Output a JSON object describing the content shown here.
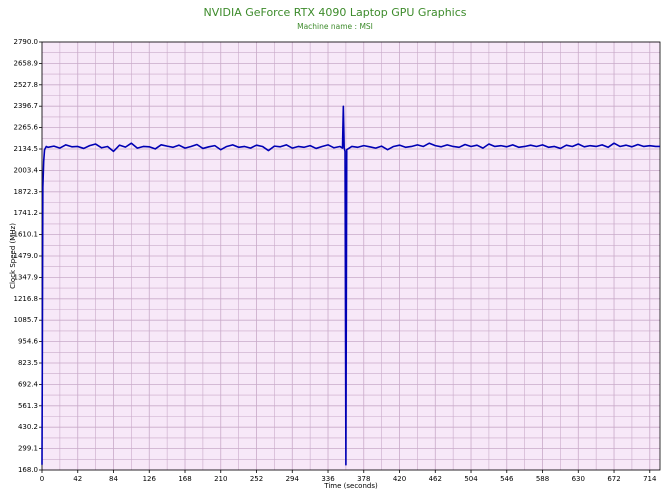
{
  "chart_data": {
    "type": "line",
    "title": "NVIDIA GeForce RTX 4090 Laptop GPU Graphics",
    "subtitle": "Machine name : MSI",
    "xlabel": "Time (seconds)",
    "ylabel": "Clock Speed (MHz)",
    "color": "#0000b4",
    "background": "#f7e8f8",
    "grid_color": "#c9aac9",
    "grid": true,
    "minor_grid": true,
    "xlim": [
      0,
      726
    ],
    "ylim": [
      168,
      2790
    ],
    "xticks": [
      0,
      42,
      84,
      126,
      168,
      210,
      252,
      294,
      336,
      378,
      420,
      462,
      504,
      546,
      588,
      630,
      672,
      714
    ],
    "yticks": [
      {
        "value": 168,
        "label": "168.0"
      },
      299.1,
      430.2,
      561.3,
      692.4,
      823.5,
      954.6,
      1085.7,
      1216.8,
      1347.9,
      {
        "value": 1479,
        "label": "1479.0"
      },
      1610.1,
      1741.2,
      1872.3,
      2003.4,
      2134.5,
      2265.6,
      2396.7,
      2527.8,
      2658.9,
      {
        "value": 2790,
        "label": "2790.0"
      }
    ],
    "x": [
      0,
      1,
      2,
      3,
      5,
      7,
      14,
      21,
      28,
      35,
      42,
      49,
      56,
      63,
      70,
      77,
      84,
      91,
      98,
      105,
      112,
      119,
      126,
      133,
      140,
      147,
      154,
      161,
      168,
      175,
      182,
      189,
      196,
      203,
      210,
      217,
      224,
      231,
      238,
      245,
      252,
      259,
      266,
      273,
      280,
      287,
      294,
      301,
      308,
      315,
      322,
      329,
      336,
      343,
      350,
      353,
      354,
      355,
      356,
      357,
      358,
      364,
      371,
      378,
      385,
      392,
      399,
      406,
      413,
      420,
      427,
      434,
      441,
      448,
      455,
      462,
      469,
      476,
      483,
      490,
      497,
      504,
      511,
      518,
      525,
      532,
      539,
      546,
      553,
      560,
      567,
      574,
      581,
      588,
      595,
      602,
      609,
      616,
      623,
      630,
      637,
      644,
      651,
      658,
      665,
      672,
      679,
      686,
      693,
      700,
      707,
      714,
      721,
      726
    ],
    "values": [
      200,
      1900,
      2060,
      2130,
      2150,
      2145,
      2152,
      2140,
      2160,
      2148,
      2150,
      2138,
      2155,
      2165,
      2142,
      2150,
      2120,
      2158,
      2146,
      2170,
      2140,
      2150,
      2148,
      2135,
      2160,
      2152,
      2145,
      2158,
      2140,
      2150,
      2162,
      2138,
      2148,
      2155,
      2130,
      2150,
      2160,
      2145,
      2150,
      2140,
      2158,
      2150,
      2125,
      2152,
      2148,
      2160,
      2140,
      2150,
      2145,
      2155,
      2138,
      2150,
      2160,
      2142,
      2150,
      2140,
      2396,
      2140,
      2120,
      200,
      2130,
      2150,
      2145,
      2155,
      2148,
      2140,
      2152,
      2130,
      2150,
      2158,
      2145,
      2150,
      2160,
      2150,
      2170,
      2155,
      2148,
      2160,
      2150,
      2145,
      2162,
      2150,
      2158,
      2140,
      2165,
      2150,
      2155,
      2148,
      2160,
      2145,
      2150,
      2158,
      2150,
      2160,
      2145,
      2150,
      2138,
      2158,
      2150,
      2165,
      2148,
      2155,
      2150,
      2160,
      2145,
      2170,
      2150,
      2158,
      2148,
      2162,
      2150,
      2155,
      2150,
      2150
    ]
  }
}
